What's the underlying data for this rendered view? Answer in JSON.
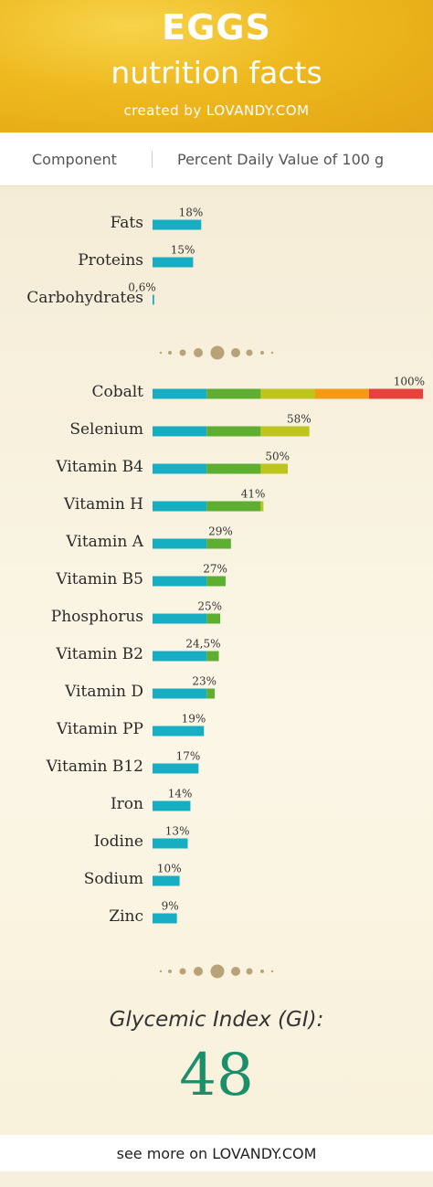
{
  "header": {
    "title": "EGGS",
    "subtitle": "nutrition facts",
    "credit": "created by LOVANDY.COM"
  },
  "columns": {
    "component": "Component",
    "percent": "Percent Daily Value of 100 g"
  },
  "colors": {
    "teal": "#17aec4",
    "green": "#5dae31",
    "lime": "#bdc51e",
    "orange": "#f39a17",
    "red": "#e4423a",
    "gi_value_color": "#1a8f6a"
  },
  "chart_data": [
    {
      "type": "bar",
      "orientation": "horizontal",
      "xlim": [
        0,
        100
      ],
      "categories": [
        "Fats",
        "Proteins",
        "Carbohydrates"
      ],
      "values": [
        18,
        15,
        0.6
      ],
      "labels": [
        "18%",
        "15%",
        "0,6%"
      ]
    },
    {
      "type": "bar",
      "orientation": "horizontal",
      "xlim": [
        0,
        100
      ],
      "color_bands": [
        20,
        40,
        60,
        80,
        100
      ],
      "categories": [
        "Cobalt",
        "Selenium",
        "Vitamin B4",
        "Vitamin H",
        "Vitamin A",
        "Vitamin B5",
        "Phosphorus",
        "Vitamin B2",
        "Vitamin D",
        "Vitamin PP",
        "Vitamin B12",
        "Iron",
        "Iodine",
        "Sodium",
        "Zinc"
      ],
      "values": [
        100,
        58,
        50,
        41,
        29,
        27,
        25,
        24.5,
        23,
        19,
        17,
        14,
        13,
        10,
        9
      ],
      "labels": [
        "100%",
        "58%",
        "50%",
        "41%",
        "29%",
        "27%",
        "25%",
        "24,5%",
        "23%",
        "19%",
        "17%",
        "14%",
        "13%",
        "10%",
        "9%"
      ]
    }
  ],
  "glycemic": {
    "label": "Glycemic Index (GI):",
    "value": "48"
  },
  "footer": {
    "text": "see more on LOVANDY.COM"
  }
}
